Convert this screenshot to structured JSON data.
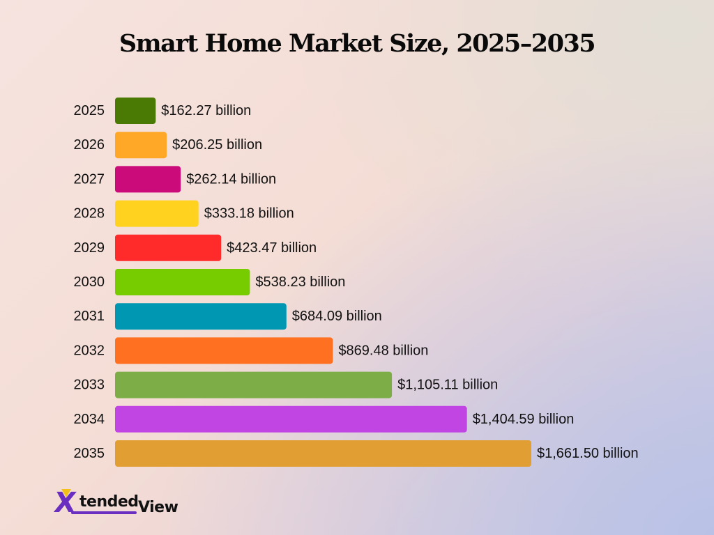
{
  "chart_data": {
    "type": "bar",
    "orientation": "horizontal",
    "title": "Smart Home Market Size, 2025–2035",
    "categories": [
      "2025",
      "2026",
      "2027",
      "2028",
      "2029",
      "2030",
      "2031",
      "2032",
      "2033",
      "2034",
      "2035"
    ],
    "values": [
      162.27,
      206.25,
      262.14,
      333.18,
      423.47,
      538.23,
      684.09,
      869.48,
      1105.11,
      1404.59,
      1661.5
    ],
    "value_labels": [
      "$162.27 billion",
      "$206.25 billion",
      "$262.14 billion",
      "$333.18 billion",
      "$423.47 billion",
      "$538.23 billion",
      "$684.09 billion",
      "$869.48 billion",
      "$1,105.11 billion",
      "$1,404.59 billion",
      "$1,661.50 billion"
    ],
    "colors": [
      "#4a7a04",
      "#ffa828",
      "#cc0b7a",
      "#ffd21f",
      "#ff2a2a",
      "#77cc00",
      "#0097b2",
      "#ff7020",
      "#7dad47",
      "#c045e2",
      "#e19e33"
    ],
    "xlabel": "",
    "ylabel": "",
    "xlim": [
      0,
      1661.5
    ],
    "grid": false,
    "legend": "none"
  },
  "logo": {
    "mark": "X",
    "text_primary": "tended",
    "text_secondary": "View"
  },
  "colors": {
    "title": "#0a0a0a",
    "logo_purple": "#6a2ec0",
    "logo_yellow": "#f2c21b"
  }
}
